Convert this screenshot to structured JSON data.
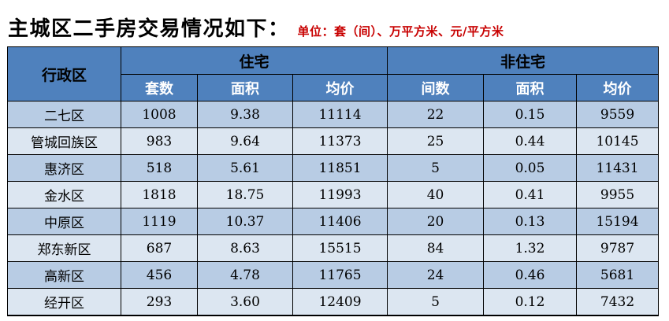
{
  "title": "主城区二手房交易情况如下：",
  "unit_note": "单位：套（间）、万平方米、元/平方米",
  "colors": {
    "header_bg": "#4f81bd",
    "row_odd_bg": "#b8cce4",
    "row_even_bg": "#dce6f1",
    "unit_note_color": "#c80000"
  },
  "table": {
    "corner_header": "行政区",
    "group_headers": [
      "住宅",
      "非住宅"
    ],
    "sub_headers": [
      "套数",
      "面积",
      "均价",
      "间数",
      "面积",
      "均价"
    ],
    "rows": [
      {
        "district": "二七区",
        "values": [
          "1008",
          "9.38",
          "11114",
          "22",
          "0.15",
          "9559"
        ]
      },
      {
        "district": "管城回族区",
        "values": [
          "983",
          "9.64",
          "11373",
          "25",
          "0.44",
          "10145"
        ]
      },
      {
        "district": "惠济区",
        "values": [
          "518",
          "5.61",
          "11851",
          "5",
          "0.05",
          "11431"
        ]
      },
      {
        "district": "金水区",
        "values": [
          "1818",
          "18.75",
          "11993",
          "40",
          "0.41",
          "9955"
        ]
      },
      {
        "district": "中原区",
        "values": [
          "1119",
          "10.37",
          "11406",
          "20",
          "0.13",
          "15194"
        ]
      },
      {
        "district": "郑东新区",
        "values": [
          "687",
          "8.63",
          "15515",
          "84",
          "1.32",
          "9787"
        ]
      },
      {
        "district": "高新区",
        "values": [
          "456",
          "4.78",
          "11765",
          "24",
          "0.46",
          "5681"
        ]
      },
      {
        "district": "经开区",
        "values": [
          "293",
          "3.60",
          "12409",
          "5",
          "0.12",
          "7432"
        ]
      }
    ]
  }
}
